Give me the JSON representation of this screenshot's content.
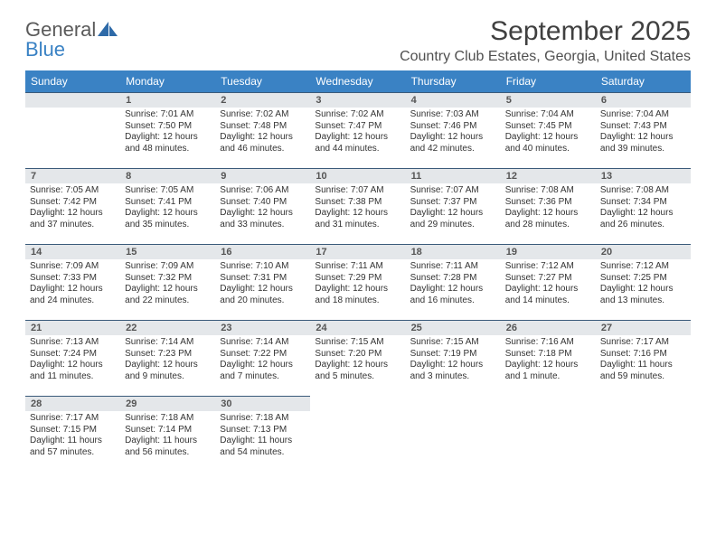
{
  "logo": {
    "general": "General",
    "blue": "Blue"
  },
  "title": "September 2025",
  "location": "Country Club Estates, Georgia, United States",
  "colors": {
    "header_bg": "#3a82c4",
    "header_text": "#ffffff",
    "daynum_bg": "#e4e7ea",
    "daynum_border": "#3a5a7a",
    "text": "#333333"
  },
  "weekdays": [
    "Sunday",
    "Monday",
    "Tuesday",
    "Wednesday",
    "Thursday",
    "Friday",
    "Saturday"
  ],
  "weeks": [
    [
      {
        "day": "",
        "sunrise": "",
        "sunset": "",
        "daylight1": "",
        "daylight2": ""
      },
      {
        "day": "1",
        "sunrise": "Sunrise: 7:01 AM",
        "sunset": "Sunset: 7:50 PM",
        "daylight1": "Daylight: 12 hours",
        "daylight2": "and 48 minutes."
      },
      {
        "day": "2",
        "sunrise": "Sunrise: 7:02 AM",
        "sunset": "Sunset: 7:48 PM",
        "daylight1": "Daylight: 12 hours",
        "daylight2": "and 46 minutes."
      },
      {
        "day": "3",
        "sunrise": "Sunrise: 7:02 AM",
        "sunset": "Sunset: 7:47 PM",
        "daylight1": "Daylight: 12 hours",
        "daylight2": "and 44 minutes."
      },
      {
        "day": "4",
        "sunrise": "Sunrise: 7:03 AM",
        "sunset": "Sunset: 7:46 PM",
        "daylight1": "Daylight: 12 hours",
        "daylight2": "and 42 minutes."
      },
      {
        "day": "5",
        "sunrise": "Sunrise: 7:04 AM",
        "sunset": "Sunset: 7:45 PM",
        "daylight1": "Daylight: 12 hours",
        "daylight2": "and 40 minutes."
      },
      {
        "day": "6",
        "sunrise": "Sunrise: 7:04 AM",
        "sunset": "Sunset: 7:43 PM",
        "daylight1": "Daylight: 12 hours",
        "daylight2": "and 39 minutes."
      }
    ],
    [
      {
        "day": "7",
        "sunrise": "Sunrise: 7:05 AM",
        "sunset": "Sunset: 7:42 PM",
        "daylight1": "Daylight: 12 hours",
        "daylight2": "and 37 minutes."
      },
      {
        "day": "8",
        "sunrise": "Sunrise: 7:05 AM",
        "sunset": "Sunset: 7:41 PM",
        "daylight1": "Daylight: 12 hours",
        "daylight2": "and 35 minutes."
      },
      {
        "day": "9",
        "sunrise": "Sunrise: 7:06 AM",
        "sunset": "Sunset: 7:40 PM",
        "daylight1": "Daylight: 12 hours",
        "daylight2": "and 33 minutes."
      },
      {
        "day": "10",
        "sunrise": "Sunrise: 7:07 AM",
        "sunset": "Sunset: 7:38 PM",
        "daylight1": "Daylight: 12 hours",
        "daylight2": "and 31 minutes."
      },
      {
        "day": "11",
        "sunrise": "Sunrise: 7:07 AM",
        "sunset": "Sunset: 7:37 PM",
        "daylight1": "Daylight: 12 hours",
        "daylight2": "and 29 minutes."
      },
      {
        "day": "12",
        "sunrise": "Sunrise: 7:08 AM",
        "sunset": "Sunset: 7:36 PM",
        "daylight1": "Daylight: 12 hours",
        "daylight2": "and 28 minutes."
      },
      {
        "day": "13",
        "sunrise": "Sunrise: 7:08 AM",
        "sunset": "Sunset: 7:34 PM",
        "daylight1": "Daylight: 12 hours",
        "daylight2": "and 26 minutes."
      }
    ],
    [
      {
        "day": "14",
        "sunrise": "Sunrise: 7:09 AM",
        "sunset": "Sunset: 7:33 PM",
        "daylight1": "Daylight: 12 hours",
        "daylight2": "and 24 minutes."
      },
      {
        "day": "15",
        "sunrise": "Sunrise: 7:09 AM",
        "sunset": "Sunset: 7:32 PM",
        "daylight1": "Daylight: 12 hours",
        "daylight2": "and 22 minutes."
      },
      {
        "day": "16",
        "sunrise": "Sunrise: 7:10 AM",
        "sunset": "Sunset: 7:31 PM",
        "daylight1": "Daylight: 12 hours",
        "daylight2": "and 20 minutes."
      },
      {
        "day": "17",
        "sunrise": "Sunrise: 7:11 AM",
        "sunset": "Sunset: 7:29 PM",
        "daylight1": "Daylight: 12 hours",
        "daylight2": "and 18 minutes."
      },
      {
        "day": "18",
        "sunrise": "Sunrise: 7:11 AM",
        "sunset": "Sunset: 7:28 PM",
        "daylight1": "Daylight: 12 hours",
        "daylight2": "and 16 minutes."
      },
      {
        "day": "19",
        "sunrise": "Sunrise: 7:12 AM",
        "sunset": "Sunset: 7:27 PM",
        "daylight1": "Daylight: 12 hours",
        "daylight2": "and 14 minutes."
      },
      {
        "day": "20",
        "sunrise": "Sunrise: 7:12 AM",
        "sunset": "Sunset: 7:25 PM",
        "daylight1": "Daylight: 12 hours",
        "daylight2": "and 13 minutes."
      }
    ],
    [
      {
        "day": "21",
        "sunrise": "Sunrise: 7:13 AM",
        "sunset": "Sunset: 7:24 PM",
        "daylight1": "Daylight: 12 hours",
        "daylight2": "and 11 minutes."
      },
      {
        "day": "22",
        "sunrise": "Sunrise: 7:14 AM",
        "sunset": "Sunset: 7:23 PM",
        "daylight1": "Daylight: 12 hours",
        "daylight2": "and 9 minutes."
      },
      {
        "day": "23",
        "sunrise": "Sunrise: 7:14 AM",
        "sunset": "Sunset: 7:22 PM",
        "daylight1": "Daylight: 12 hours",
        "daylight2": "and 7 minutes."
      },
      {
        "day": "24",
        "sunrise": "Sunrise: 7:15 AM",
        "sunset": "Sunset: 7:20 PM",
        "daylight1": "Daylight: 12 hours",
        "daylight2": "and 5 minutes."
      },
      {
        "day": "25",
        "sunrise": "Sunrise: 7:15 AM",
        "sunset": "Sunset: 7:19 PM",
        "daylight1": "Daylight: 12 hours",
        "daylight2": "and 3 minutes."
      },
      {
        "day": "26",
        "sunrise": "Sunrise: 7:16 AM",
        "sunset": "Sunset: 7:18 PM",
        "daylight1": "Daylight: 12 hours",
        "daylight2": "and 1 minute."
      },
      {
        "day": "27",
        "sunrise": "Sunrise: 7:17 AM",
        "sunset": "Sunset: 7:16 PM",
        "daylight1": "Daylight: 11 hours",
        "daylight2": "and 59 minutes."
      }
    ],
    [
      {
        "day": "28",
        "sunrise": "Sunrise: 7:17 AM",
        "sunset": "Sunset: 7:15 PM",
        "daylight1": "Daylight: 11 hours",
        "daylight2": "and 57 minutes."
      },
      {
        "day": "29",
        "sunrise": "Sunrise: 7:18 AM",
        "sunset": "Sunset: 7:14 PM",
        "daylight1": "Daylight: 11 hours",
        "daylight2": "and 56 minutes."
      },
      {
        "day": "30",
        "sunrise": "Sunrise: 7:18 AM",
        "sunset": "Sunset: 7:13 PM",
        "daylight1": "Daylight: 11 hours",
        "daylight2": "and 54 minutes."
      },
      {
        "day": "",
        "sunrise": "",
        "sunset": "",
        "daylight1": "",
        "daylight2": ""
      },
      {
        "day": "",
        "sunrise": "",
        "sunset": "",
        "daylight1": "",
        "daylight2": ""
      },
      {
        "day": "",
        "sunrise": "",
        "sunset": "",
        "daylight1": "",
        "daylight2": ""
      },
      {
        "day": "",
        "sunrise": "",
        "sunset": "",
        "daylight1": "",
        "daylight2": ""
      }
    ]
  ]
}
